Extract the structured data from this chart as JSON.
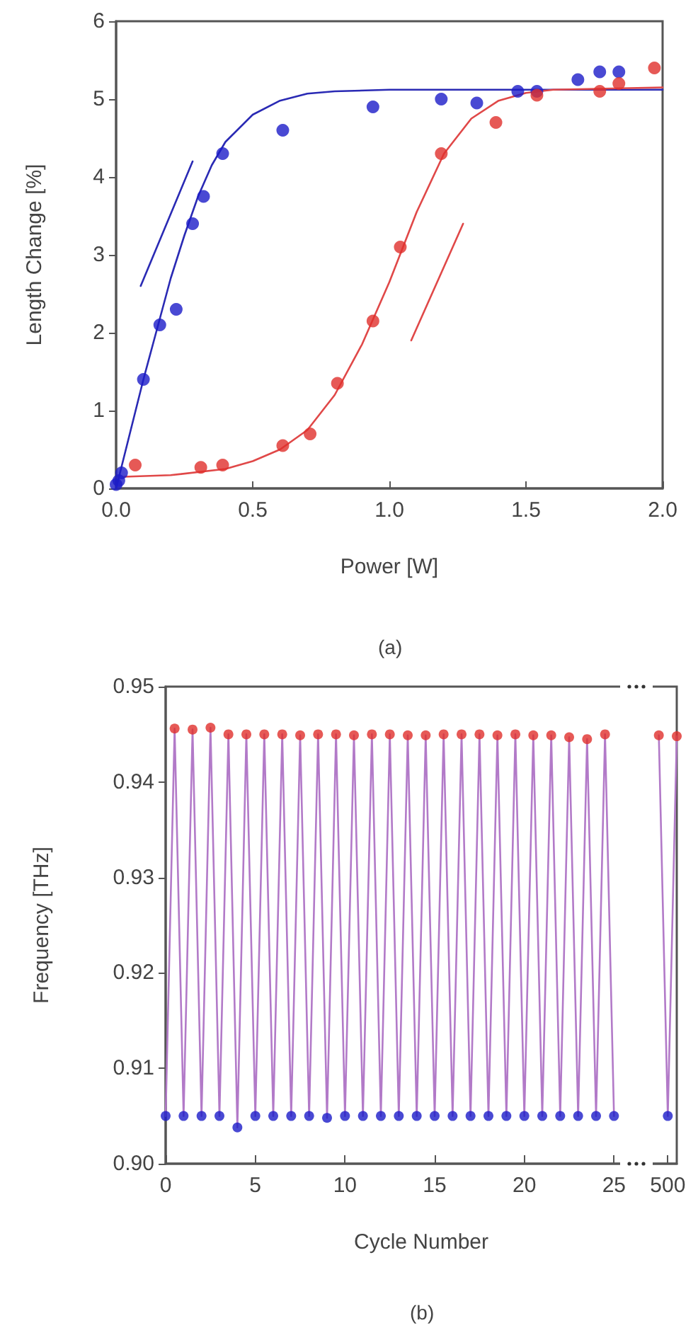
{
  "chart_data": [
    {
      "type": "scatter",
      "xlabel": "Power [W]",
      "ylabel": "Length Change [%]",
      "annotations": [
        "(a)"
      ],
      "marker": "circle",
      "xlim": [
        0,
        2
      ],
      "xticks": [
        {
          "value": 0,
          "label": "0.0"
        },
        {
          "value": 0.5,
          "label": "0.5"
        },
        {
          "value": 1,
          "label": "1.0"
        },
        {
          "value": 1.5,
          "label": "1.5"
        },
        {
          "value": 2,
          "label": "2.0"
        }
      ],
      "ylim": [
        0,
        6
      ],
      "yticks": [
        0,
        1,
        2,
        3,
        4,
        5,
        6
      ],
      "series": [
        {
          "type": "scatter",
          "color": "#1c1cc8",
          "x": [
            0,
            0.01,
            0.02,
            0.1,
            0.16,
            0.22,
            0.28,
            0.32,
            0.39,
            0.61,
            0.94,
            1.19,
            1.32,
            1.47,
            1.54,
            1.69,
            1.77,
            1.84
          ],
          "values": [
            0.05,
            0.1,
            0.2,
            1.4,
            2.1,
            2.3,
            3.4,
            3.75,
            4.3,
            4.6,
            4.9,
            5,
            4.95,
            5.1,
            5.1,
            5.25,
            5.35,
            5.35
          ]
        },
        {
          "type": "scatter",
          "color": "#e0302c",
          "x": [
            0.07,
            0.31,
            0.39,
            0.61,
            0.71,
            0.81,
            0.94,
            1.04,
            1.19,
            1.39,
            1.54,
            1.77,
            1.84,
            1.97
          ],
          "values": [
            0.3,
            0.27,
            0.3,
            0.55,
            0.7,
            1.35,
            2.15,
            3.1,
            4.3,
            4.7,
            5.05,
            5.1,
            5.2,
            5.4
          ]
        },
        {
          "type": "line",
          "marker": "none",
          "color": "#2a2ab4",
          "x": [
            0,
            0.05,
            0.1,
            0.15,
            0.2,
            0.25,
            0.3,
            0.35,
            0.4,
            0.5,
            0.6,
            0.7,
            0.8,
            1,
            2
          ],
          "values": [
            0,
            0.7,
            1.4,
            2.05,
            2.7,
            3.25,
            3.75,
            4.15,
            4.45,
            4.8,
            4.98,
            5.07,
            5.1,
            5.12,
            5.12
          ]
        },
        {
          "type": "line",
          "marker": "none",
          "color": "#e04848",
          "x": [
            0.03,
            0.2,
            0.4,
            0.5,
            0.6,
            0.7,
            0.8,
            0.9,
            1,
            1.1,
            1.2,
            1.3,
            1.4,
            1.5,
            1.6,
            2
          ],
          "values": [
            0.15,
            0.17,
            0.25,
            0.35,
            0.5,
            0.75,
            1.2,
            1.85,
            2.65,
            3.55,
            4.3,
            4.75,
            4.98,
            5.08,
            5.12,
            5.15
          ]
        },
        {
          "type": "line",
          "marker": "none",
          "color": "#2a2ab4",
          "x": [
            0.09,
            0.28
          ],
          "values": [
            2.6,
            4.2
          ]
        },
        {
          "type": "line",
          "marker": "none",
          "color": "#e04848",
          "x": [
            1.08,
            1.27
          ],
          "values": [
            1.9,
            3.4
          ]
        }
      ]
    },
    {
      "type": "scatter",
      "xlabel": "Cycle Number",
      "ylabel": "Frequency [THz]",
      "annotations": [
        "(b)"
      ],
      "marker": "circle",
      "categories": [
        "0",
        null,
        null,
        null,
        null,
        null,
        null,
        null,
        null,
        null,
        "5",
        null,
        null,
        null,
        null,
        null,
        null,
        null,
        null,
        null,
        "10",
        null,
        null,
        null,
        null,
        null,
        null,
        null,
        null,
        null,
        "15",
        null,
        null,
        null,
        null,
        null,
        null,
        null,
        null,
        null,
        "20",
        null,
        null,
        null,
        null,
        null,
        null,
        null,
        null,
        null,
        "25",
        null,
        null,
        null,
        null,
        null,
        "500",
        null
      ],
      "ylim": [
        0.9,
        0.95
      ],
      "yticks": [
        {
          "value": 0.9,
          "label": "0.90"
        },
        {
          "value": 0.91,
          "label": "0.91"
        },
        {
          "value": 0.92,
          "label": "0.92"
        },
        {
          "value": 0.93,
          "label": "0.93"
        },
        {
          "value": 0.94,
          "label": "0.94"
        },
        {
          "value": 0.95,
          "label": "0.95"
        }
      ],
      "series": [
        {
          "type": "line",
          "marker": "none",
          "color": "#b27ac8",
          "values": [
            0.905,
            0.9456,
            0.905,
            0.9455,
            0.905,
            0.9457,
            0.905,
            0.945,
            0.9038,
            0.945,
            0.905,
            0.945,
            0.905,
            0.945,
            0.905,
            0.9449,
            0.905,
            0.945,
            0.9048,
            0.945,
            0.905,
            0.9449,
            0.905,
            0.945,
            0.905,
            0.945,
            0.905,
            0.9449,
            0.905,
            0.9449,
            0.905,
            0.945,
            0.905,
            0.945,
            0.905,
            0.945,
            0.905,
            0.9449,
            0.905,
            0.945,
            0.905,
            0.9449,
            0.905,
            0.9449,
            0.905,
            0.9447,
            0.905,
            0.9445,
            0.905,
            0.945,
            0.905,
            null,
            null,
            null,
            null,
            0.9449,
            0.905,
            0.9448
          ]
        },
        {
          "type": "scatter",
          "color": "#e0302c",
          "values": [
            null,
            0.9456,
            null,
            0.9455,
            null,
            0.9457,
            null,
            0.945,
            null,
            0.945,
            null,
            0.945,
            null,
            0.945,
            null,
            0.9449,
            null,
            0.945,
            null,
            0.945,
            null,
            0.9449,
            null,
            0.945,
            null,
            0.945,
            null,
            0.9449,
            null,
            0.9449,
            null,
            0.945,
            null,
            0.945,
            null,
            0.945,
            null,
            0.9449,
            null,
            0.945,
            null,
            0.9449,
            null,
            0.9449,
            null,
            0.9447,
            null,
            0.9445,
            null,
            0.945,
            null,
            null,
            null,
            null,
            null,
            0.9449,
            null,
            0.9448
          ]
        },
        {
          "type": "scatter",
          "color": "#1c1cc8",
          "values": [
            0.905,
            null,
            0.905,
            null,
            0.905,
            null,
            0.905,
            null,
            0.9038,
            null,
            0.905,
            null,
            0.905,
            null,
            0.905,
            null,
            0.905,
            null,
            0.9048,
            null,
            0.905,
            null,
            0.905,
            null,
            0.905,
            null,
            0.905,
            null,
            0.905,
            null,
            0.905,
            null,
            0.905,
            null,
            0.905,
            null,
            0.905,
            null,
            0.905,
            null,
            0.905,
            null,
            0.905,
            null,
            0.905,
            null,
            0.905,
            null,
            0.905,
            null,
            0.905,
            null,
            null,
            null,
            null,
            null,
            0.905,
            null
          ]
        }
      ]
    }
  ]
}
